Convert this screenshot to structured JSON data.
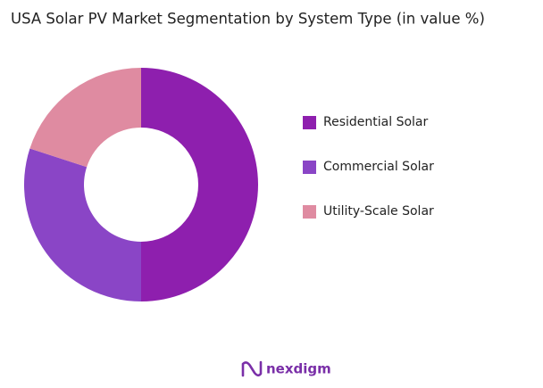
{
  "chart_data": {
    "type": "donut",
    "title": "USA Solar PV Market Segmentation by System Type (in value %)",
    "categories": [
      "Residential Solar",
      "Commercial Solar",
      "Utility-Scale Solar"
    ],
    "values": [
      50,
      30,
      20
    ],
    "colors": [
      "#8e1fae",
      "#8a45c6",
      "#df8ba1"
    ],
    "legend": "right"
  },
  "brand": "nexdigm"
}
